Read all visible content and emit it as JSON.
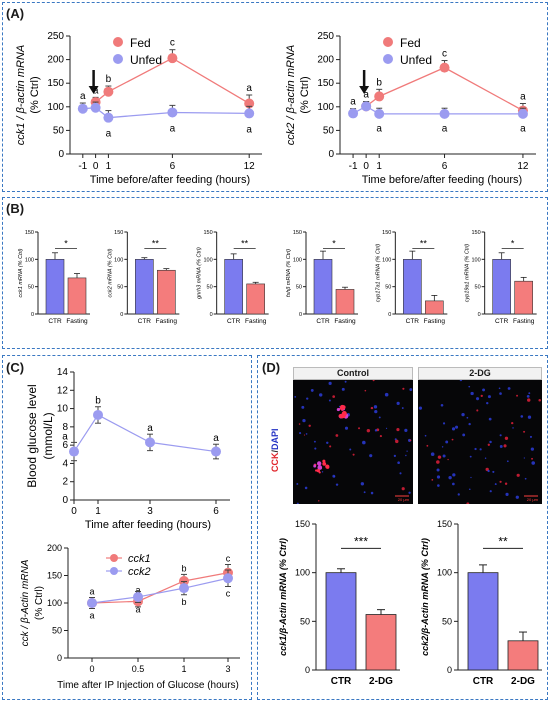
{
  "panels": {
    "A": "(A)",
    "B": "(B)",
    "C": "(C)",
    "D": "(D)"
  },
  "colors": {
    "fed": "#f07a7a",
    "unfed": "#9b9bf0",
    "ctr_bar": "#7b7bef",
    "fast_bar": "#f47c7c"
  },
  "chart_data": [
    {
      "id": "A1",
      "type": "line",
      "ylabel": "cck1 / β-actin mRNA\n(% Ctrl)",
      "xlabel": "Time before/after feeding (hours)",
      "x_ticks": [
        "-1",
        "0",
        "1",
        "6",
        "12"
      ],
      "ylim": [
        0,
        250
      ],
      "y_ticks": [
        "0",
        "50",
        "100",
        "150",
        "200",
        "250"
      ],
      "x": [
        -1,
        0,
        1,
        6,
        12
      ],
      "series": [
        {
          "name": "Fed",
          "x": [
            0,
            1,
            6,
            12
          ],
          "values": [
            110,
            132,
            203,
            107
          ],
          "letters": [
            "a",
            "b",
            "c",
            "a"
          ],
          "err": [
            10,
            12,
            18,
            18
          ]
        },
        {
          "name": "Unfed",
          "x": [
            -1,
            0,
            1,
            6,
            12
          ],
          "values": [
            96,
            98,
            77,
            88,
            86
          ],
          "letters": [
            "a",
            "",
            "a",
            "a",
            "a"
          ],
          "err": [
            12,
            12,
            15,
            15,
            15
          ]
        }
      ],
      "arrow_at": 0
    },
    {
      "id": "A2",
      "type": "line",
      "ylabel": "cck2 / β-actin mRNA\n(% Ctrl)",
      "xlabel": "Time before/after feeding (hours)",
      "x_ticks": [
        "-1",
        "0",
        "1",
        "6",
        "12"
      ],
      "ylim": [
        0,
        250
      ],
      "y_ticks": [
        "0",
        "50",
        "100",
        "150",
        "200",
        "250"
      ],
      "series": [
        {
          "name": "Fed",
          "x": [
            0,
            1,
            6,
            12
          ],
          "values": [
            101,
            122,
            183,
            92
          ],
          "letters": [
            "a",
            "b",
            "c",
            "a"
          ],
          "err": [
            10,
            15,
            15,
            15
          ]
        },
        {
          "name": "Unfed",
          "x": [
            -1,
            0,
            1,
            6,
            12
          ],
          "values": [
            86,
            101,
            85,
            85,
            85
          ],
          "letters": [
            "a",
            "",
            "a",
            "a",
            "a"
          ],
          "err": [
            10,
            10,
            12,
            12,
            12
          ]
        }
      ],
      "arrow_at": 0
    },
    {
      "id": "B",
      "type": "bar",
      "categories": [
        "CTR",
        "Fasting"
      ],
      "charts": [
        {
          "ylabel": "cck1 mRNA (% Ctrl)",
          "values": [
            100,
            66
          ],
          "err": [
            12,
            8
          ],
          "sig": "*"
        },
        {
          "ylabel": "cck2 mRNA (% Ctrl)",
          "values": [
            100,
            80
          ],
          "err": [
            3,
            3
          ],
          "sig": "**"
        },
        {
          "ylabel": "gnrh3 mRNA (% Ctrl)",
          "values": [
            100,
            55
          ],
          "err": [
            10,
            3
          ],
          "sig": "**"
        },
        {
          "ylabel": "fshβ mRNA (% Ctrl)",
          "values": [
            100,
            45
          ],
          "err": [
            15,
            4
          ],
          "sig": "*"
        },
        {
          "ylabel": "cyp17a1 mRNA (% Ctrl)",
          "values": [
            100,
            24
          ],
          "err": [
            15,
            10
          ],
          "sig": "**"
        },
        {
          "ylabel": "cyp19a1 mRNA (% Ctrl)",
          "values": [
            100,
            60
          ],
          "err": [
            12,
            7
          ],
          "sig": "*"
        }
      ],
      "ylim": [
        0,
        150
      ],
      "y_ticks": [
        "0",
        "50",
        "100",
        "150"
      ]
    },
    {
      "id": "C1",
      "type": "line",
      "ylabel": "Blood glucose level\n(mmol/L)",
      "xlabel": "Time after feeding (hours)",
      "x": [
        0,
        1,
        3,
        6
      ],
      "x_ticks": [
        "0",
        "1",
        "3",
        "6"
      ],
      "ylim": [
        0,
        14
      ],
      "y_ticks": [
        "0",
        "2",
        "4",
        "6",
        "8",
        "10",
        "12",
        "14"
      ],
      "series": [
        {
          "name": "",
          "values": [
            5.3,
            9.3,
            6.3,
            5.3
          ],
          "err": [
            1.0,
            0.9,
            0.9,
            0.8
          ],
          "letters": [
            "a",
            "b",
            "a",
            "a"
          ]
        }
      ]
    },
    {
      "id": "C2",
      "type": "line",
      "ylabel": "cck / β-Actin mRNA\n(% Ctrl)",
      "xlabel": "Time after IP Injection of Glucose (hours)",
      "x": [
        0,
        0.5,
        1,
        3
      ],
      "x_ticks": [
        "0",
        "0.5",
        "1",
        "3"
      ],
      "ylim": [
        0,
        200
      ],
      "y_ticks": [
        "0",
        "50",
        "100",
        "150",
        "200"
      ],
      "series": [
        {
          "name": "cck1",
          "values": [
            100,
            103,
            140,
            155
          ],
          "err": [
            10,
            10,
            12,
            15
          ],
          "letters": [
            "a",
            "a",
            "b",
            "c"
          ]
        },
        {
          "name": "cck2",
          "values": [
            100,
            111,
            127,
            145
          ],
          "err": [
            10,
            10,
            12,
            15
          ],
          "letters": [
            "a",
            "a",
            "b",
            "c"
          ]
        }
      ]
    },
    {
      "id": "D1",
      "type": "bar",
      "ylabel": "cck1/β-Actin mRNA (% Ctrl)",
      "categories": [
        "CTR",
        "2-DG"
      ],
      "values": [
        100,
        57
      ],
      "err": [
        4,
        5
      ],
      "sig": "***",
      "ylim": [
        0,
        150
      ],
      "y_ticks": [
        "0",
        "50",
        "100",
        "150"
      ]
    },
    {
      "id": "D2",
      "type": "bar",
      "ylabel": "cck2/β-Actin mRNA (% Ctrl)",
      "categories": [
        "CTR",
        "2-DG"
      ],
      "values": [
        100,
        30
      ],
      "err": [
        8,
        9
      ],
      "sig": "**",
      "ylim": [
        0,
        150
      ],
      "y_ticks": [
        "0",
        "50",
        "100",
        "150"
      ]
    }
  ],
  "micrograph": {
    "control_label": "Control",
    "dg_label": "2-DG",
    "side_label_cck": "CCK",
    "side_label_dapi": "DAPI",
    "scale_text": "20 μm"
  }
}
